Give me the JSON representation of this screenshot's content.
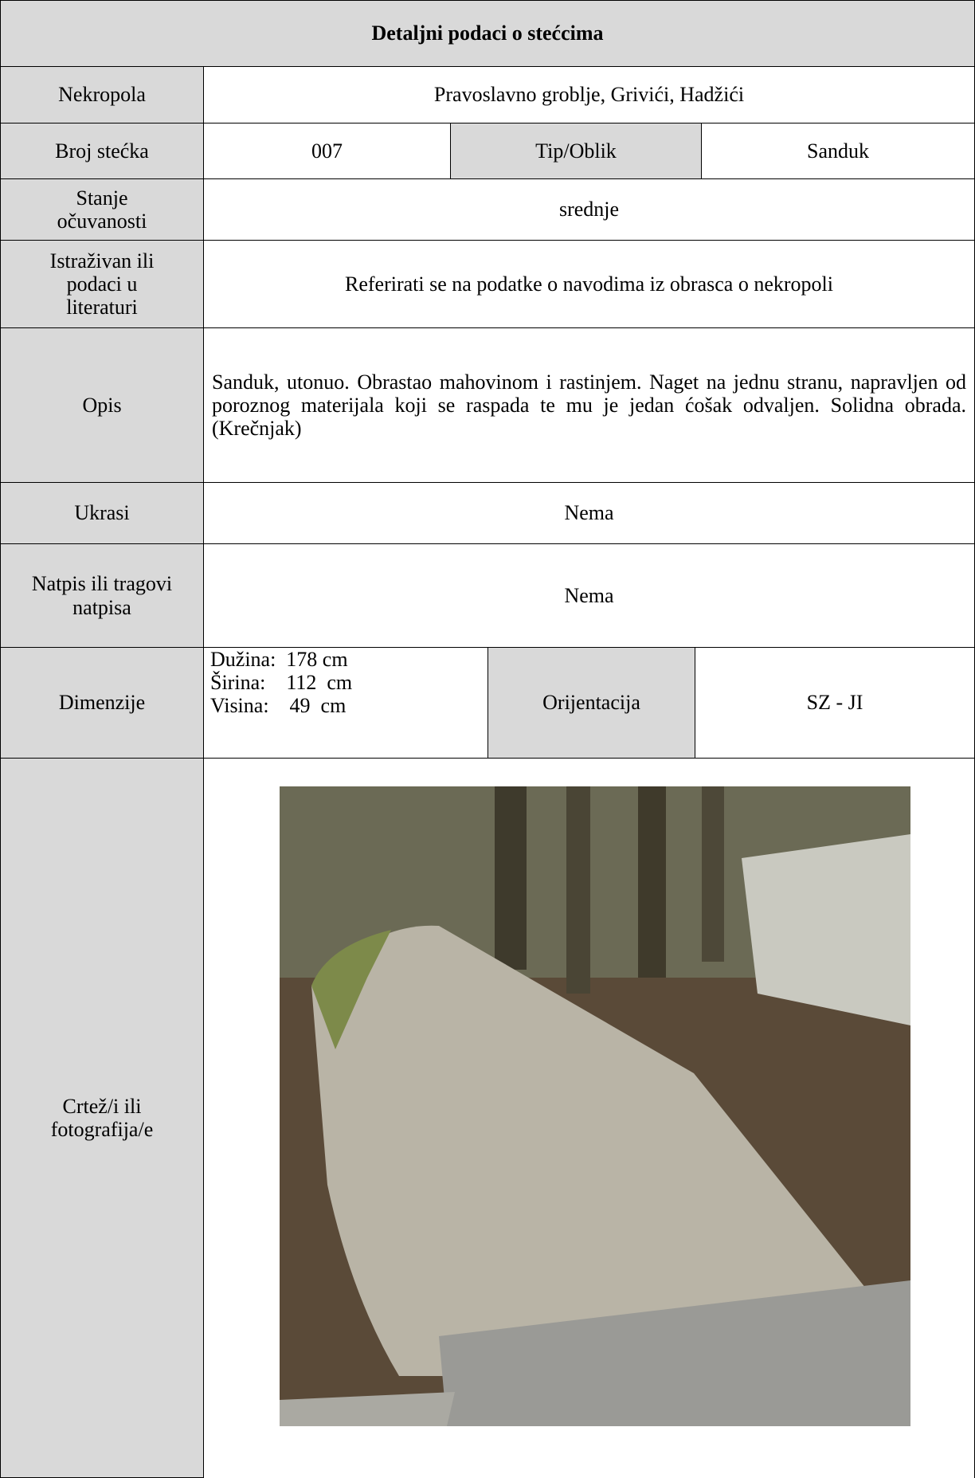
{
  "title": "Detaljni podaci o stećcima",
  "rows": [
    {
      "label": "Nekropola",
      "value": "Pravoslavno groblje, Grivići, Hadžići"
    },
    {
      "label": "Broj stećka",
      "value": "007",
      "label2": "Tip/Oblik",
      "value2": "Sanduk"
    },
    {
      "label": "Stanje očuvanosti",
      "value": "srednje"
    },
    {
      "label": "Istraživan ili podaci u literaturi",
      "value": "Referirati se na podatke o navodima iz obrasca o nekropoli"
    },
    {
      "label": "Opis",
      "value": "Sanduk, utonuo. Obrastao mahovinom i rastinjem. Naget na jednu stranu, napravljen od poroznog materijala koji se raspada te mu je jedan ćošak odvaljen.  Solidna obrada. (Krečnjak)"
    },
    {
      "label": "Ukrasi",
      "value": "Nema"
    },
    {
      "label": "Natpis ili tragovi natpisa",
      "value": "Nema"
    },
    {
      "label": "Dimenzije",
      "lines": [
        "Dužina:  178 cm",
        "Širina:    112  cm",
        "Visina:    49  cm"
      ],
      "label2": "Orijentacija",
      "value2": "SZ - JI"
    },
    {
      "label": "Crtež/i ili fotografija/e"
    }
  ]
}
